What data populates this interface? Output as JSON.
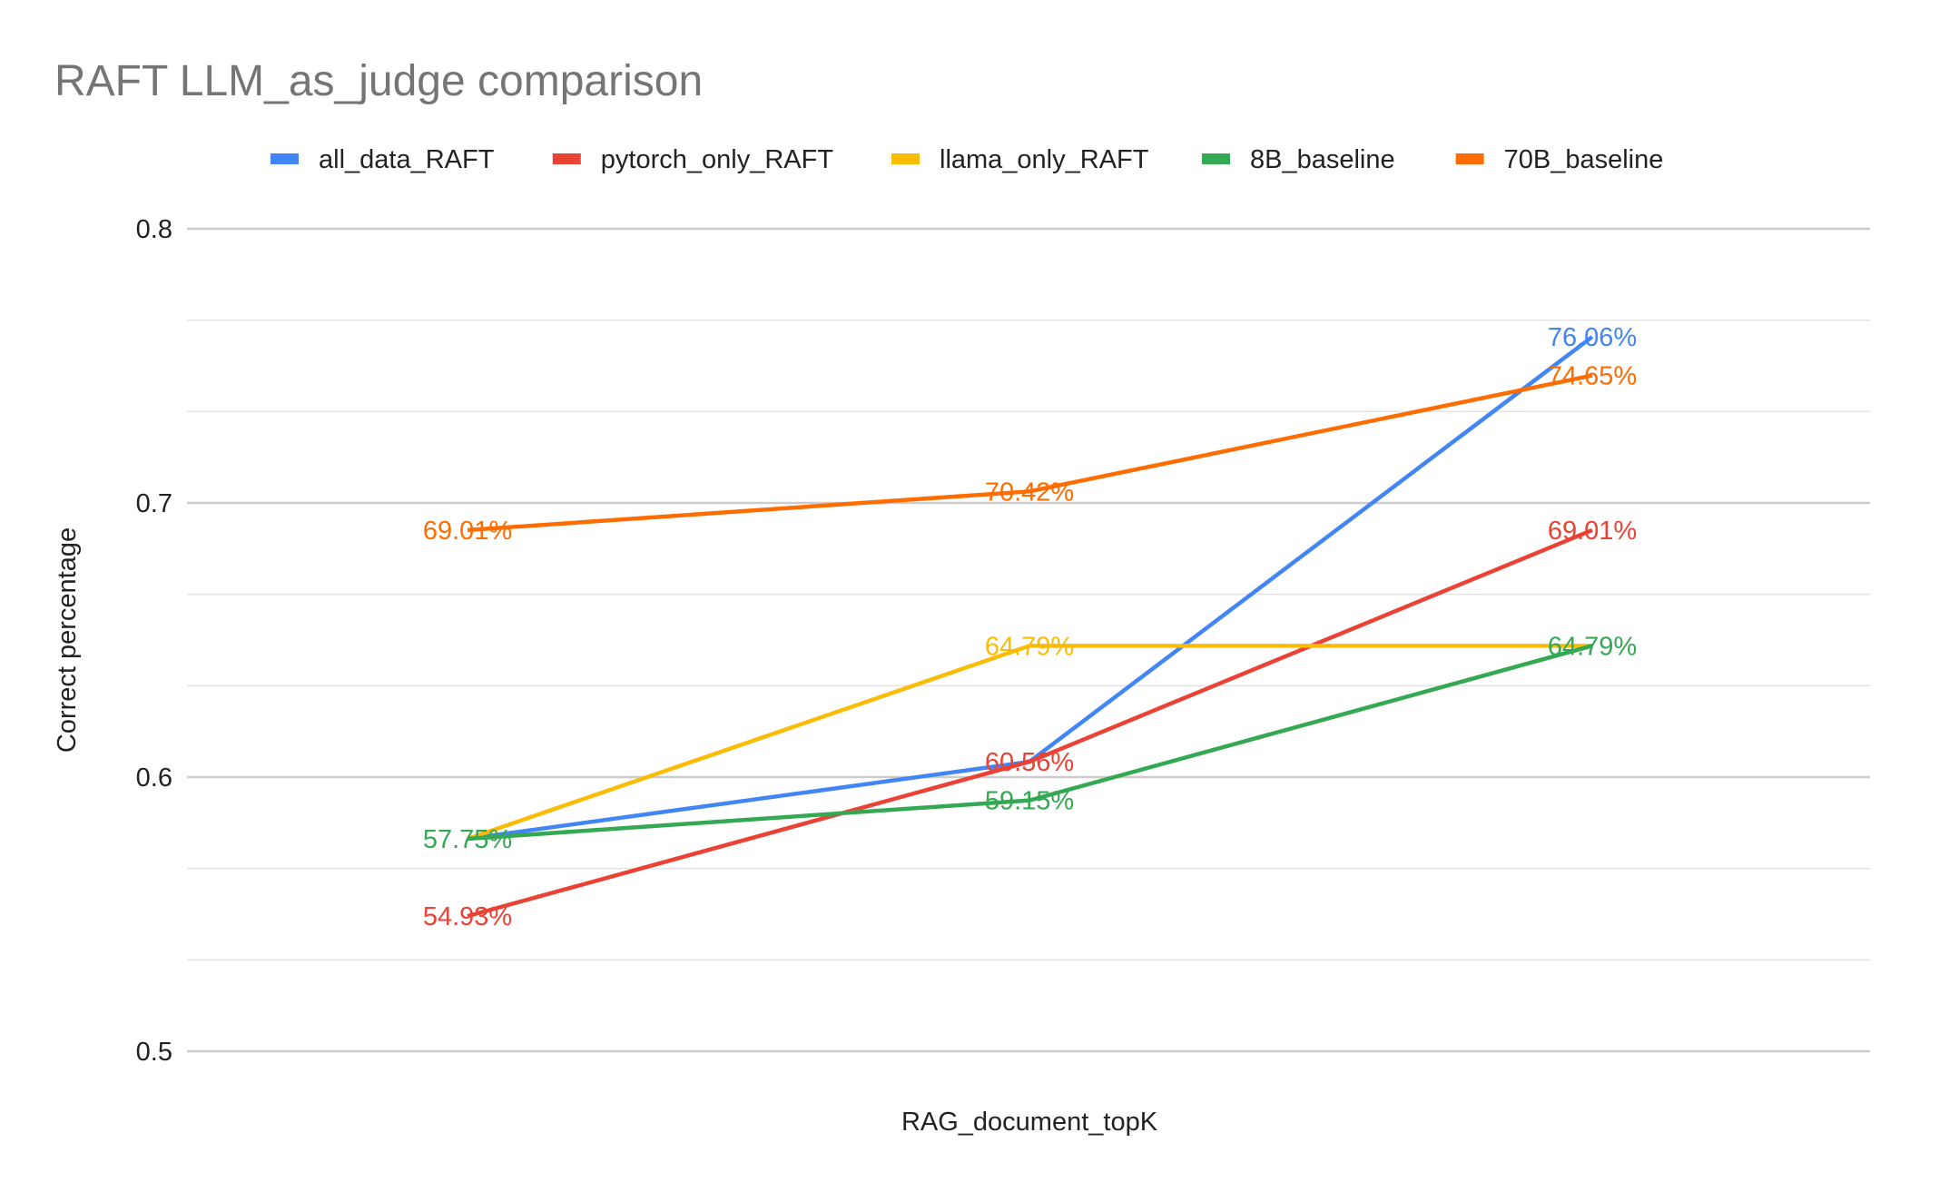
{
  "chart_data": {
    "type": "line",
    "title": "RAFT LLM_as_judge comparison",
    "xlabel": "RAG_document_topK",
    "ylabel": "Correct percentage",
    "ylim": [
      0.5,
      0.8
    ],
    "yticks": [
      "0.5",
      "0.6",
      "0.7",
      "0.8"
    ],
    "grid": true,
    "legend": "top",
    "categories": [
      "",
      "",
      ""
    ],
    "series": [
      {
        "name": "all_data_RAFT",
        "color": "#4285f4",
        "values": [
          0.5775,
          0.6056,
          0.7606
        ],
        "labels": [
          "",
          "",
          "76.06%"
        ]
      },
      {
        "name": "pytorch_only_RAFT",
        "color": "#ea4335",
        "values": [
          0.5493,
          0.6056,
          0.6901
        ],
        "labels": [
          "54.93%",
          "60.56%",
          "69.01%"
        ]
      },
      {
        "name": "llama_only_RAFT",
        "color": "#fbbc04",
        "values": [
          0.5775,
          0.6479,
          0.6479
        ],
        "labels": [
          "",
          "64.79%",
          ""
        ]
      },
      {
        "name": "8B_baseline",
        "color": "#34a853",
        "values": [
          0.5775,
          0.5915,
          0.6479
        ],
        "labels": [
          "57.75%",
          "59.15%",
          "64.79%"
        ]
      },
      {
        "name": "70B_baseline",
        "color": "#ff6d01",
        "values": [
          0.6901,
          0.7042,
          0.7465
        ],
        "labels": [
          "69.01%",
          "70.42%",
          "74.65%"
        ]
      }
    ]
  }
}
